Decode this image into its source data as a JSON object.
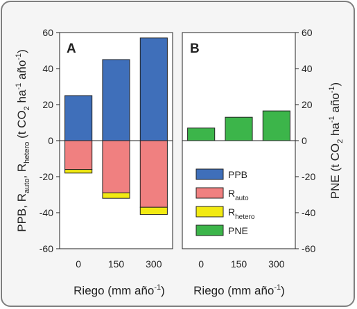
{
  "chart_data": [
    {
      "panel_letter": "A",
      "type": "bar",
      "stacked": true,
      "categories": [
        "0",
        "150",
        "300"
      ],
      "ylim": [
        -60,
        60
      ],
      "yticks": [
        -60,
        -40,
        -20,
        0,
        20,
        40,
        60
      ],
      "series": [
        {
          "name": "PPB",
          "color": "#3f6fba",
          "values": [
            25,
            45,
            57
          ]
        },
        {
          "name": "R_auto",
          "color": "#f08080",
          "values": [
            -16,
            -29,
            -37
          ]
        },
        {
          "name": "R_hetero",
          "color": "#f2ea12",
          "values": [
            -2,
            -3,
            -4
          ]
        }
      ],
      "ylabel": {
        "parts": [
          "PPB, R",
          "auto",
          ", R",
          "hetero",
          " (t CO",
          "2",
          " ha",
          "-1",
          " año",
          "-1",
          ")"
        ]
      },
      "xlabel": {
        "parts": [
          "Riego (mm año",
          "-1",
          ")"
        ]
      }
    },
    {
      "panel_letter": "B",
      "type": "bar",
      "categories": [
        "0",
        "150",
        "300"
      ],
      "ylim": [
        -60,
        60
      ],
      "yticks": [
        -60,
        -40,
        -20,
        0,
        20,
        40,
        60
      ],
      "series": [
        {
          "name": "PNE",
          "color": "#3cb54a",
          "values": [
            7,
            13,
            16.5
          ]
        }
      ],
      "ylabel": {
        "parts": [
          "PNE (t CO",
          "2",
          " ha",
          "-1",
          " año",
          "-1",
          ")"
        ]
      },
      "xlabel": {
        "parts": [
          "Riego (mm año",
          "-1",
          ")"
        ]
      }
    }
  ],
  "legend": [
    {
      "main": "PPB",
      "sub": "",
      "color": "#3f6fba"
    },
    {
      "main": "R",
      "sub": "auto",
      "color": "#f08080"
    },
    {
      "main": "R",
      "sub": "hetero",
      "color": "#f2ea12"
    },
    {
      "main": "PNE",
      "sub": "",
      "color": "#3cb54a"
    }
  ]
}
